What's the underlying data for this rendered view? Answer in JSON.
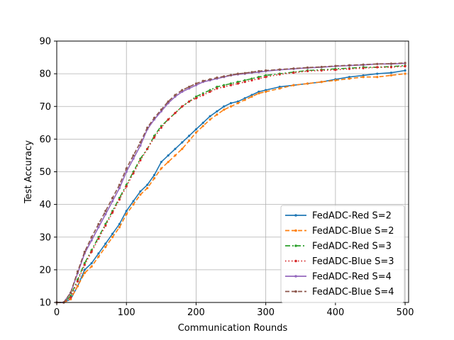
{
  "chart_data": {
    "type": "line",
    "title": "",
    "xlabel": "Communication Rounds",
    "ylabel": "Test Accuracy",
    "xlim": [
      0,
      505
    ],
    "ylim": [
      10,
      90
    ],
    "xticks": [
      0,
      100,
      200,
      300,
      400,
      500
    ],
    "yticks": [
      10,
      20,
      30,
      40,
      50,
      60,
      70,
      80,
      90
    ],
    "grid": true,
    "legend_position": "lower-right",
    "series": [
      {
        "name": "FedADC-Red S=2",
        "color": "#1f77b4",
        "dash": "solid",
        "marker": "dot",
        "x": [
          0,
          10,
          20,
          30,
          40,
          50,
          60,
          70,
          80,
          90,
          100,
          110,
          120,
          130,
          140,
          150,
          160,
          170,
          180,
          190,
          200,
          210,
          220,
          230,
          240,
          250,
          260,
          270,
          280,
          290,
          300,
          320,
          340,
          360,
          380,
          400,
          420,
          440,
          460,
          480,
          500
        ],
        "y": [
          10,
          10,
          11,
          15,
          20,
          22,
          25,
          28,
          31,
          34,
          38,
          41,
          44,
          46,
          49,
          53,
          55,
          57,
          59,
          61,
          63,
          65,
          67,
          68.5,
          70,
          71,
          71.5,
          72.5,
          73.5,
          74.5,
          75,
          76,
          76.5,
          77,
          77.5,
          78.3,
          79,
          79.5,
          80,
          80.3,
          81
        ]
      },
      {
        "name": "FedADC-Blue S=2",
        "color": "#ff7f0e",
        "dash": "dashed",
        "marker": "dot",
        "x": [
          0,
          10,
          20,
          30,
          40,
          50,
          60,
          70,
          80,
          90,
          100,
          110,
          120,
          130,
          140,
          150,
          160,
          170,
          180,
          190,
          200,
          210,
          220,
          230,
          240,
          250,
          260,
          270,
          280,
          290,
          300,
          320,
          340,
          360,
          380,
          400,
          420,
          440,
          460,
          480,
          500
        ],
        "y": [
          10,
          10,
          11,
          15,
          19,
          21,
          24,
          27,
          30,
          33,
          37,
          40,
          43,
          45,
          48,
          51,
          53,
          55,
          57,
          59.5,
          62,
          64,
          66,
          67.5,
          69,
          70,
          71,
          72,
          73,
          74,
          74.5,
          75.5,
          76.5,
          77,
          77.5,
          78,
          78.5,
          79,
          79,
          79.5,
          80
        ]
      },
      {
        "name": "FedADC-Red S=3",
        "color": "#2ca02c",
        "dash": "dashdot",
        "marker": "dot",
        "x": [
          0,
          10,
          20,
          30,
          40,
          50,
          60,
          70,
          80,
          90,
          100,
          110,
          120,
          130,
          140,
          150,
          160,
          170,
          180,
          190,
          200,
          210,
          220,
          230,
          240,
          250,
          260,
          270,
          280,
          290,
          300,
          320,
          340,
          360,
          380,
          400,
          420,
          440,
          460,
          480,
          500
        ],
        "y": [
          10,
          10,
          12,
          17,
          22,
          26,
          30,
          34,
          38,
          42,
          46,
          50,
          54,
          57,
          61,
          64,
          66,
          68,
          70,
          71.5,
          73,
          74,
          75,
          76,
          76.5,
          77,
          77.5,
          78,
          78.5,
          79,
          79.5,
          80,
          80.5,
          81,
          81.2,
          81.5,
          81.7,
          82,
          82,
          82.2,
          82.5
        ]
      },
      {
        "name": "FedADC-Blue S=3",
        "color": "#d62728",
        "dash": "dotted",
        "marker": "dot",
        "x": [
          0,
          10,
          20,
          30,
          40,
          50,
          60,
          70,
          80,
          90,
          100,
          110,
          120,
          130,
          140,
          150,
          160,
          170,
          180,
          190,
          200,
          210,
          220,
          230,
          240,
          250,
          260,
          270,
          280,
          290,
          300,
          320,
          340,
          360,
          380,
          400,
          420,
          440,
          460,
          480,
          500
        ],
        "y": [
          10,
          10,
          11.5,
          16.5,
          21.5,
          25.5,
          29.5,
          33.5,
          37.5,
          41.5,
          45.5,
          49.5,
          53.5,
          57,
          60.5,
          63.5,
          66,
          68,
          70,
          71.5,
          72.5,
          73.5,
          74.5,
          75.5,
          76,
          76.5,
          77,
          77.5,
          78,
          78.5,
          79,
          79.8,
          80.3,
          80.8,
          81,
          81.2,
          81.5,
          81.7,
          82,
          82,
          82.3
        ]
      },
      {
        "name": "FedADC-Red S=4",
        "color": "#9467bd",
        "dash": "solid",
        "marker": "dot",
        "x": [
          0,
          10,
          20,
          30,
          40,
          50,
          60,
          70,
          80,
          90,
          100,
          110,
          120,
          130,
          140,
          150,
          160,
          170,
          180,
          190,
          200,
          210,
          220,
          230,
          240,
          250,
          260,
          270,
          280,
          290,
          300,
          320,
          340,
          360,
          380,
          400,
          420,
          440,
          460,
          480,
          500
        ],
        "y": [
          10,
          10,
          13,
          19,
          25,
          29,
          33,
          37,
          41,
          45,
          50,
          54,
          58,
          63,
          66,
          68.5,
          71,
          73,
          74.5,
          75.5,
          76.5,
          77.5,
          78,
          78.5,
          79,
          79.5,
          79.8,
          80,
          80.3,
          80.5,
          80.8,
          81.2,
          81.5,
          81.8,
          82,
          82.3,
          82.5,
          82.7,
          83,
          83,
          83.2
        ]
      },
      {
        "name": "FedADC-Blue S=4",
        "color": "#8c564b",
        "dash": "dashed",
        "marker": "dot",
        "x": [
          0,
          10,
          20,
          30,
          40,
          50,
          60,
          70,
          80,
          90,
          100,
          110,
          120,
          130,
          140,
          150,
          160,
          170,
          180,
          190,
          200,
          210,
          220,
          230,
          240,
          250,
          260,
          270,
          280,
          290,
          300,
          320,
          340,
          360,
          380,
          400,
          420,
          440,
          460,
          480,
          500
        ],
        "y": [
          10,
          10,
          13,
          19.5,
          25.5,
          30,
          34,
          38,
          42,
          46,
          51,
          55,
          59,
          63.5,
          66.5,
          69,
          71.5,
          73.5,
          75,
          76,
          77,
          77.8,
          78.3,
          78.8,
          79.2,
          79.6,
          80,
          80.2,
          80.5,
          80.8,
          81,
          81.3,
          81.6,
          81.9,
          82.1,
          82.4,
          82.6,
          82.8,
          83,
          83.1,
          83.3
        ]
      }
    ]
  }
}
